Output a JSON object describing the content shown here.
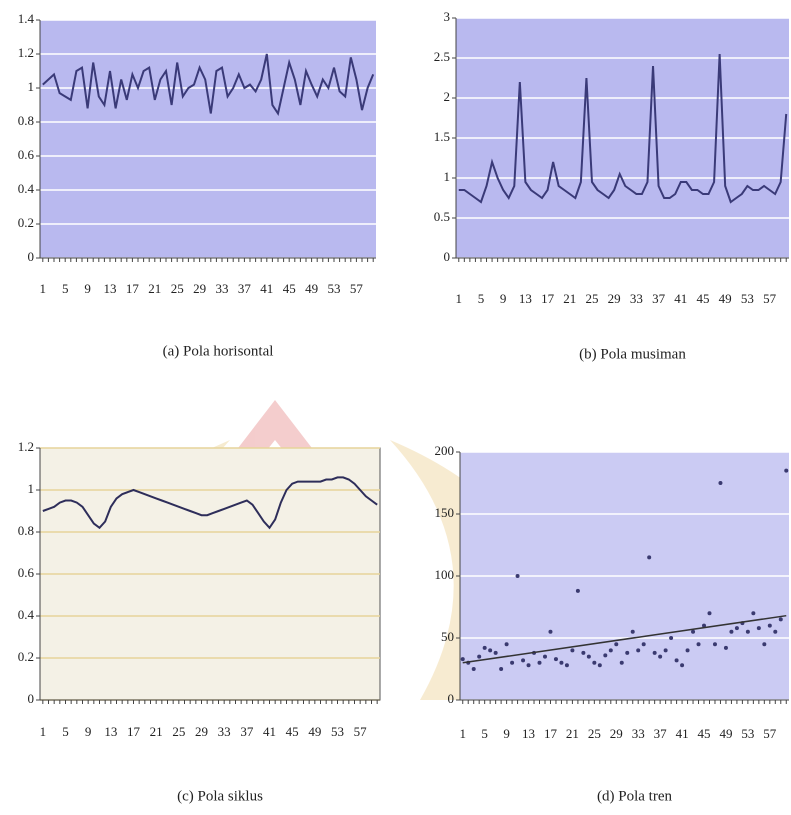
{
  "chart_data": [
    {
      "type": "line",
      "caption": "(a) Pola horisontal",
      "color": "#3a3a78",
      "background": "#b9b9ef",
      "grid": true,
      "categories": [
        1,
        null,
        null,
        null,
        5,
        null,
        null,
        null,
        9,
        null,
        null,
        null,
        13,
        null,
        null,
        null,
        17,
        null,
        null,
        null,
        21,
        null,
        null,
        null,
        25,
        null,
        null,
        null,
        29,
        null,
        null,
        null,
        33,
        null,
        null,
        null,
        37,
        null,
        null,
        null,
        41,
        null,
        null,
        null,
        45,
        null,
        null,
        null,
        49,
        null,
        null,
        null,
        53,
        null,
        null,
        null,
        57,
        null,
        null,
        null
      ],
      "values": [
        1.02,
        1.05,
        1.08,
        0.97,
        0.95,
        0.93,
        1.1,
        1.12,
        0.88,
        1.15,
        0.95,
        0.9,
        1.1,
        0.88,
        1.05,
        0.93,
        1.08,
        1.0,
        1.1,
        1.12,
        0.93,
        1.05,
        1.1,
        0.9,
        1.15,
        0.95,
        1.0,
        1.02,
        1.12,
        1.05,
        0.85,
        1.1,
        1.12,
        0.95,
        1.0,
        1.08,
        1.0,
        1.02,
        0.98,
        1.05,
        1.2,
        0.9,
        0.85,
        1.0,
        1.15,
        1.05,
        0.9,
        1.1,
        1.02,
        0.95,
        1.05,
        1.0,
        1.12,
        0.98,
        0.95,
        1.18,
        1.05,
        0.87,
        1.0,
        1.08
      ],
      "ylim": [
        0,
        1.4
      ],
      "yticks": [
        0,
        0.2,
        0.4,
        0.6,
        0.8,
        1,
        1.2,
        1.4
      ]
    },
    {
      "type": "line",
      "caption": "(b) Pola musiman",
      "color": "#3a3a78",
      "background": "#b9b9ef",
      "grid": true,
      "categories": [
        1,
        null,
        null,
        null,
        5,
        null,
        null,
        null,
        9,
        null,
        null,
        null,
        13,
        null,
        null,
        null,
        17,
        null,
        null,
        null,
        21,
        null,
        null,
        null,
        25,
        null,
        null,
        null,
        29,
        null,
        null,
        null,
        33,
        null,
        null,
        null,
        37,
        null,
        null,
        null,
        41,
        null,
        null,
        null,
        45,
        null,
        null,
        null,
        49,
        null,
        null,
        null,
        53,
        null,
        null,
        null,
        57,
        null,
        null,
        null
      ],
      "values": [
        0.85,
        0.85,
        0.8,
        0.75,
        0.7,
        0.9,
        1.2,
        1.0,
        0.85,
        0.75,
        0.9,
        2.2,
        0.95,
        0.85,
        0.8,
        0.75,
        0.85,
        1.2,
        0.9,
        0.85,
        0.8,
        0.75,
        0.95,
        2.25,
        0.95,
        0.85,
        0.8,
        0.75,
        0.85,
        1.05,
        0.9,
        0.85,
        0.8,
        0.8,
        0.95,
        2.4,
        0.9,
        0.75,
        0.75,
        0.8,
        0.95,
        0.95,
        0.85,
        0.85,
        0.8,
        0.8,
        0.95,
        2.55,
        0.9,
        0.7,
        0.75,
        0.8,
        0.9,
        0.85,
        0.85,
        0.9,
        0.85,
        0.8,
        0.95,
        1.8
      ],
      "ylim": [
        0,
        3
      ],
      "yticks": [
        0,
        0.5,
        1,
        1.5,
        2,
        2.5,
        3
      ]
    },
    {
      "type": "line",
      "caption": "(c) Pola siklus",
      "color": "#2e2e5a",
      "background": "#f4f1e6",
      "grid": true,
      "categories": [
        1,
        null,
        null,
        null,
        5,
        null,
        null,
        null,
        9,
        null,
        null,
        null,
        13,
        null,
        null,
        null,
        17,
        null,
        null,
        null,
        21,
        null,
        null,
        null,
        25,
        null,
        null,
        null,
        29,
        null,
        null,
        null,
        33,
        null,
        null,
        null,
        37,
        null,
        null,
        null,
        41,
        null,
        null,
        null,
        45,
        null,
        null,
        null,
        49,
        null,
        null,
        null,
        53,
        null,
        null,
        null,
        57,
        null,
        null,
        null
      ],
      "values": [
        0.9,
        0.91,
        0.92,
        0.94,
        0.95,
        0.95,
        0.94,
        0.92,
        0.88,
        0.84,
        0.82,
        0.85,
        0.92,
        0.96,
        0.98,
        0.99,
        1.0,
        0.99,
        0.98,
        0.97,
        0.96,
        0.95,
        0.94,
        0.93,
        0.92,
        0.91,
        0.9,
        0.89,
        0.88,
        0.88,
        0.89,
        0.9,
        0.91,
        0.92,
        0.93,
        0.94,
        0.95,
        0.93,
        0.89,
        0.85,
        0.82,
        0.86,
        0.94,
        1.0,
        1.03,
        1.04,
        1.04,
        1.04,
        1.04,
        1.04,
        1.05,
        1.05,
        1.06,
        1.06,
        1.05,
        1.03,
        1.0,
        0.97,
        0.95,
        0.93
      ],
      "ylim": [
        0,
        1.2
      ],
      "yticks": [
        0,
        0.2,
        0.4,
        0.6,
        0.8,
        1,
        1.2
      ]
    },
    {
      "type": "scatter",
      "caption": "(d) Pola tren",
      "color": "#3a3a70",
      "background": "#cbcbf3",
      "grid": true,
      "categories": [
        1,
        null,
        null,
        null,
        5,
        null,
        null,
        null,
        9,
        null,
        null,
        null,
        13,
        null,
        null,
        null,
        17,
        null,
        null,
        null,
        21,
        null,
        null,
        null,
        25,
        null,
        null,
        null,
        29,
        null,
        null,
        null,
        33,
        null,
        null,
        null,
        37,
        null,
        null,
        null,
        41,
        null,
        null,
        null,
        45,
        null,
        null,
        null,
        49,
        null,
        null,
        null,
        53,
        null,
        null,
        null,
        57,
        null,
        null,
        null
      ],
      "values": [
        33,
        30,
        25,
        35,
        42,
        40,
        38,
        25,
        45,
        30,
        100,
        32,
        28,
        38,
        30,
        35,
        55,
        33,
        30,
        28,
        40,
        88,
        38,
        35,
        30,
        28,
        36,
        40,
        45,
        30,
        38,
        55,
        40,
        45,
        115,
        38,
        35,
        40,
        50,
        32,
        28,
        40,
        55,
        45,
        60,
        70,
        45,
        175,
        42,
        55,
        58,
        62,
        55,
        70,
        58,
        45,
        60,
        55,
        65,
        185
      ],
      "trendline": [
        30,
        68
      ],
      "ylim": [
        0,
        200
      ],
      "yticks": [
        0,
        50,
        100,
        150,
        200
      ]
    }
  ]
}
